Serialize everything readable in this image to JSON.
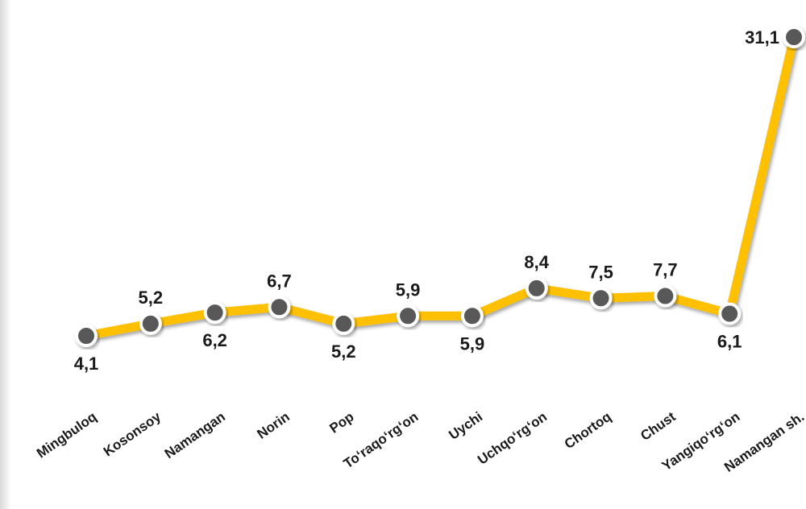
{
  "chart_data": {
    "type": "line",
    "categories": [
      "Mingbuloq",
      "Kosonsoy",
      "Namangan",
      "Norin",
      "Pop",
      "To‘raqo‘rg‘on",
      "Uychi",
      "Uchqo‘rg‘on",
      "Chortoq",
      "Chust",
      "Yangiqo‘rg‘on",
      "Namangan sh."
    ],
    "values": [
      4.1,
      5.2,
      6.2,
      6.7,
      5.2,
      5.9,
      5.9,
      8.4,
      7.5,
      7.7,
      6.1,
      31.1
    ],
    "value_labels": [
      "4,1",
      "5,2",
      "6,2",
      "6,7",
      "5,2",
      "5,9",
      "5,9",
      "8,4",
      "7,5",
      "7,7",
      "6,1",
      "31,1"
    ],
    "label_positions": [
      "below",
      "above",
      "below",
      "above",
      "below",
      "above",
      "below",
      "above",
      "above",
      "above",
      "below",
      "left"
    ],
    "ylim": [
      0,
      32
    ],
    "grid": false,
    "line_color": "#FFC000",
    "marker_color": "#595959",
    "marker_border": "#ffffff"
  }
}
